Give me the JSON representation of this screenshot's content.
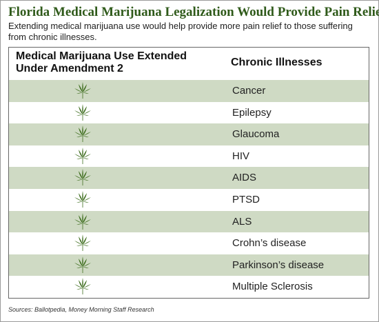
{
  "header": {
    "title": "Florida Medical Marijuana Legalization Would Provide Pain Relief",
    "subtitle": "Extending medical marijuana use would help provide more pain relief to those suffering from chronic illnesses."
  },
  "table": {
    "col_left": "Medical Marijuana Use Extended Under Amendment 2",
    "col_right": "Chronic Illnesses",
    "rows": [
      {
        "icon": "marijuana-leaf-icon",
        "illness": "Cancer"
      },
      {
        "icon": "marijuana-leaf-icon",
        "illness": "Epilepsy"
      },
      {
        "icon": "marijuana-leaf-icon",
        "illness": "Glaucoma"
      },
      {
        "icon": "marijuana-leaf-icon",
        "illness": "HIV"
      },
      {
        "icon": "marijuana-leaf-icon",
        "illness": "AIDS"
      },
      {
        "icon": "marijuana-leaf-icon",
        "illness": "PTSD"
      },
      {
        "icon": "marijuana-leaf-icon",
        "illness": "ALS"
      },
      {
        "icon": "marijuana-leaf-icon",
        "illness": "Crohn’s disease"
      },
      {
        "icon": "marijuana-leaf-icon",
        "illness": "Parkinson’s disease"
      },
      {
        "icon": "marijuana-leaf-icon",
        "illness": "Multiple Sclerosis"
      }
    ]
  },
  "footer": {
    "source": "Sources: Ballotpedia, Money Morning Staff Research"
  },
  "colors": {
    "title": "#2f5a1a",
    "leaf": "#3f6e1f",
    "row_band": "#cfdac4"
  }
}
